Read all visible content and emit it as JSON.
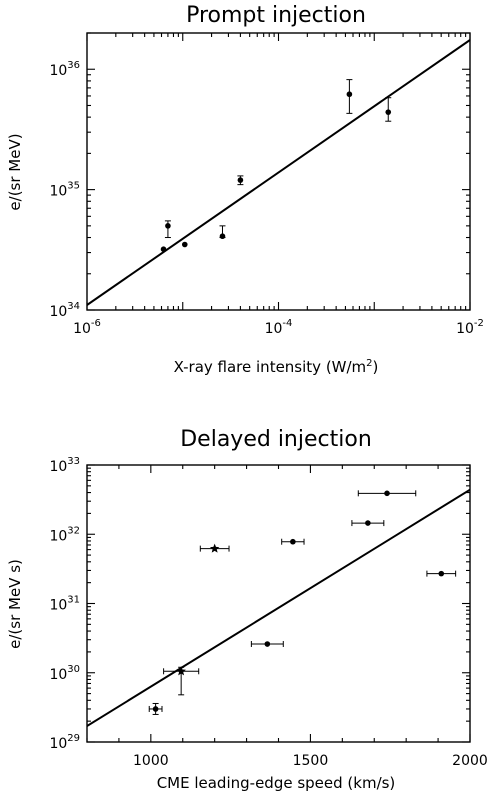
{
  "chart_data": [
    {
      "type": "scatter",
      "title": "Prompt injection",
      "xlabel": "X-ray flare intensity (W/m²)",
      "xlabel_parts": {
        "pre": "X-ray flare intensity (W/m",
        "sup": "2",
        "post": ")"
      },
      "ylabel": "e/(sr MeV)",
      "x_scale": "log",
      "y_scale": "log",
      "xlim": [
        1e-06,
        0.01
      ],
      "ylim": [
        1e+34,
        2e+36
      ],
      "x_ticks": [
        {
          "base": "10",
          "exp": "-6",
          "value": 1e-06
        },
        {
          "base": "10",
          "exp": "-4",
          "value": 0.0001
        },
        {
          "base": "10",
          "exp": "-2",
          "value": 0.01
        }
      ],
      "y_ticks": [
        {
          "base": "10",
          "exp": "34",
          "value": 1e+34
        },
        {
          "base": "10",
          "exp": "35",
          "value": 1e+35
        },
        {
          "base": "10",
          "exp": "36",
          "value": 1e+36
        }
      ],
      "points": [
        {
          "x": 6.3e-06,
          "y": 3.2e+34
        },
        {
          "x": 7e-06,
          "y": 5e+34,
          "y_err_low": 4e+34,
          "y_err_high": 5.5e+34
        },
        {
          "x": 1.05e-05,
          "y": 3.5e+34
        },
        {
          "x": 2.6e-05,
          "y": 4.1e+34,
          "y_err_low": 4e+34,
          "y_err_high": 5e+34
        },
        {
          "x": 4e-05,
          "y": 1.2e+35,
          "y_err_low": 1.1e+35,
          "y_err_high": 1.3e+35
        },
        {
          "x": 0.00055,
          "y": 6.2e+35,
          "y_err_low": 4.3e+35,
          "y_err_high": 8.2e+35
        },
        {
          "x": 0.0014,
          "y": 4.4e+35,
          "y_err_low": 3.7e+35,
          "y_err_high": 5.8e+35
        }
      ],
      "fit_line": {
        "x": [
          1e-06,
          0.01
        ],
        "y": [
          1.1e+34,
          1.75e+36
        ]
      },
      "grid": false,
      "legend": "none"
    },
    {
      "type": "scatter",
      "title": "Delayed injection",
      "xlabel": "CME leading-edge speed (km/s)",
      "ylabel": "e/(sr MeV s)",
      "x_scale": "linear",
      "y_scale": "log",
      "xlim": [
        800,
        2000
      ],
      "ylim": [
        1e+29,
        1e+33
      ],
      "x_ticks": [
        {
          "label": "1000",
          "value": 1000
        },
        {
          "label": "1500",
          "value": 1500
        },
        {
          "label": "2000",
          "value": 2000
        }
      ],
      "y_ticks": [
        {
          "base": "10",
          "exp": "29",
          "value": 1e+29
        },
        {
          "base": "10",
          "exp": "30",
          "value": 1e+30
        },
        {
          "base": "10",
          "exp": "31",
          "value": 1e+31
        },
        {
          "base": "10",
          "exp": "32",
          "value": 1e+32
        },
        {
          "base": "10",
          "exp": "33",
          "value": 1e+33
        }
      ],
      "points": [
        {
          "x": 1015,
          "y": 3e+29,
          "x_err": 20,
          "y_err_low": 2.5e+29,
          "y_err_high": 3.6e+29,
          "marker": "circle"
        },
        {
          "x": 1095,
          "y": 1.05e+30,
          "x_err": 55,
          "y_err_low": 4.8e+29,
          "y_err_high": 1.2e+30,
          "marker": "star"
        },
        {
          "x": 1200,
          "y": 6.2e+31,
          "x_err": 45,
          "marker": "star"
        },
        {
          "x": 1365,
          "y": 2.6e+30,
          "x_err": 50,
          "marker": "circle"
        },
        {
          "x": 1445,
          "y": 7.8e+31,
          "x_err": 35,
          "marker": "circle"
        },
        {
          "x": 1680,
          "y": 1.45e+32,
          "x_err": 50,
          "marker": "circle"
        },
        {
          "x": 1740,
          "y": 3.9e+32,
          "x_err": 90,
          "marker": "circle"
        },
        {
          "x": 1910,
          "y": 2.7e+31,
          "x_err": 45,
          "marker": "circle"
        }
      ],
      "fit_line": {
        "x": [
          800,
          2000
        ],
        "y": [
          1.7e+29,
          4.4e+32
        ]
      },
      "grid": false,
      "legend": "none"
    }
  ]
}
